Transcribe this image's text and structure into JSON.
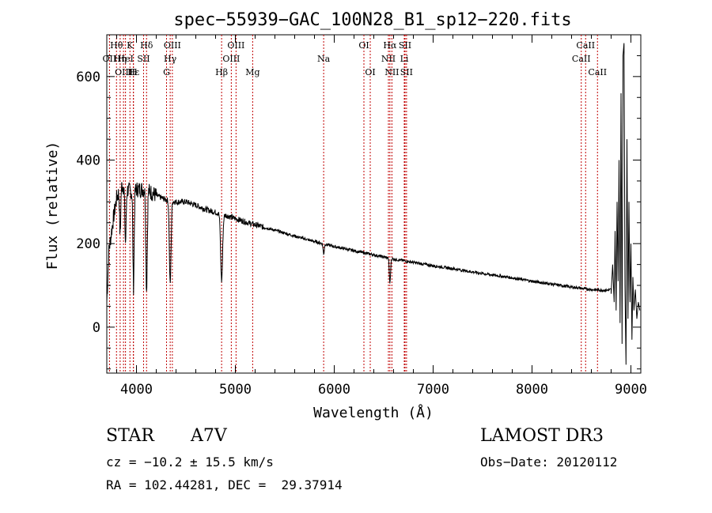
{
  "chart_data": {
    "type": "line",
    "title": "spec−55939−GAC_100N28_B1_sp12−220.fits",
    "xlabel": "Wavelength (Å)",
    "ylabel": "Flux (relative)",
    "xlim": [
      3700,
      9100
    ],
    "ylim": [
      -110,
      700
    ],
    "xticks": [
      4000,
      5000,
      6000,
      7000,
      8000,
      9000
    ],
    "yticks": [
      0,
      200,
      400,
      600
    ],
    "lines": [
      {
        "label": "Hθ",
        "wave": 3798,
        "row": 0
      },
      {
        "label": "OII",
        "wave": 3727,
        "row": 1
      },
      {
        "label": "OIII",
        "wave": 3869,
        "row": 2
      },
      {
        "label": "Hη",
        "wave": 3835,
        "row": 1
      },
      {
        "label": "HeI",
        "wave": 3889,
        "row": 1
      },
      {
        "label": "K",
        "wave": 3934,
        "row": 0
      },
      {
        "label": "Hε",
        "wave": 3970,
        "row": 2
      },
      {
        "label": "H",
        "wave": 3968,
        "row": 2
      },
      {
        "label": "SII",
        "wave": 4072,
        "row": 1
      },
      {
        "label": "Hδ",
        "wave": 4102,
        "row": 0
      },
      {
        "label": "OIII",
        "wave": 4363,
        "row": 0
      },
      {
        "label": "Hγ",
        "wave": 4341,
        "row": 1
      },
      {
        "label": "G",
        "wave": 4304,
        "row": 2
      },
      {
        "label": "Hβ",
        "wave": 4861,
        "row": 2
      },
      {
        "label": "OIII",
        "wave": 5007,
        "row": 0
      },
      {
        "label": "OIII",
        "wave": 4959,
        "row": 1
      },
      {
        "label": "Mg",
        "wave": 5175,
        "row": 2
      },
      {
        "label": "Na",
        "wave": 5893,
        "row": 1
      },
      {
        "label": "OI",
        "wave": 6300,
        "row": 0
      },
      {
        "label": "OI",
        "wave": 6364,
        "row": 2
      },
      {
        "label": "Hα",
        "wave": 6563,
        "row": 0
      },
      {
        "label": "NII",
        "wave": 6548,
        "row": 1
      },
      {
        "label": "NII",
        "wave": 6583,
        "row": 2
      },
      {
        "label": "SII",
        "wave": 6716,
        "row": 0
      },
      {
        "label": "Li",
        "wave": 6708,
        "row": 1
      },
      {
        "label": "SII",
        "wave": 6731,
        "row": 2
      },
      {
        "label": "CaII",
        "wave": 8542,
        "row": 0
      },
      {
        "label": "CaII",
        "wave": 8498,
        "row": 1
      },
      {
        "label": "CaII",
        "wave": 8662,
        "row": 2
      }
    ],
    "continuum": [
      [
        3700,
        60
      ],
      [
        3720,
        180
      ],
      [
        3760,
        250
      ],
      [
        3800,
        310
      ],
      [
        3850,
        340
      ],
      [
        3900,
        330
      ],
      [
        3950,
        325
      ],
      [
        4000,
        330
      ],
      [
        4100,
        330
      ],
      [
        4200,
        315
      ],
      [
        4300,
        305
      ],
      [
        4400,
        300
      ],
      [
        4500,
        300
      ],
      [
        4600,
        292
      ],
      [
        4700,
        282
      ],
      [
        4800,
        275
      ],
      [
        4900,
        268
      ],
      [
        5000,
        260
      ],
      [
        5100,
        252
      ],
      [
        5200,
        245
      ],
      [
        5400,
        232
      ],
      [
        5600,
        218
      ],
      [
        5800,
        205
      ],
      [
        6000,
        193
      ],
      [
        6200,
        183
      ],
      [
        6400,
        173
      ],
      [
        6600,
        163
      ],
      [
        6800,
        155
      ],
      [
        7000,
        147
      ],
      [
        7200,
        140
      ],
      [
        7400,
        132
      ],
      [
        7600,
        125
      ],
      [
        7800,
        118
      ],
      [
        8000,
        110
      ],
      [
        8200,
        103
      ],
      [
        8400,
        96
      ],
      [
        8600,
        90
      ],
      [
        8750,
        88
      ],
      [
        8800,
        90
      ]
    ],
    "absorption": [
      {
        "wave": 3835,
        "depth": 110,
        "width": 8
      },
      {
        "wave": 3889,
        "depth": 130,
        "width": 9
      },
      {
        "wave": 3970,
        "depth": 230,
        "width": 9
      },
      {
        "wave": 4102,
        "depth": 240,
        "width": 10
      },
      {
        "wave": 4341,
        "depth": 200,
        "width": 12
      },
      {
        "wave": 4861,
        "depth": 160,
        "width": 14
      },
      {
        "wave": 5893,
        "depth": 25,
        "width": 8
      },
      {
        "wave": 6563,
        "depth": 60,
        "width": 9
      }
    ],
    "noisy_tail": [
      [
        8800,
        80
      ],
      [
        8815,
        150
      ],
      [
        8830,
        60
      ],
      [
        8840,
        230
      ],
      [
        8850,
        40
      ],
      [
        8860,
        300
      ],
      [
        8870,
        110
      ],
      [
        8880,
        400
      ],
      [
        8890,
        10
      ],
      [
        8900,
        560
      ],
      [
        8910,
        -40
      ],
      [
        8920,
        650
      ],
      [
        8930,
        680
      ],
      [
        8940,
        100
      ],
      [
        8950,
        -90
      ],
      [
        8960,
        450
      ],
      [
        8970,
        20
      ],
      [
        8980,
        300
      ],
      [
        8990,
        60
      ],
      [
        9000,
        200
      ],
      [
        9010,
        -30
      ],
      [
        9020,
        120
      ],
      [
        9030,
        40
      ],
      [
        9045,
        90
      ],
      [
        9060,
        20
      ],
      [
        9075,
        60
      ],
      [
        9090,
        40
      ]
    ]
  },
  "info": {
    "object_class": "STAR",
    "subclass": "A7V",
    "survey": "LAMOST DR3",
    "velocity": "cz = −10.2 ± 15.5 km/s",
    "obs_date": "Obs−Date: 20120112",
    "coords": "RA = 102.44281, DEC =  29.37914"
  }
}
